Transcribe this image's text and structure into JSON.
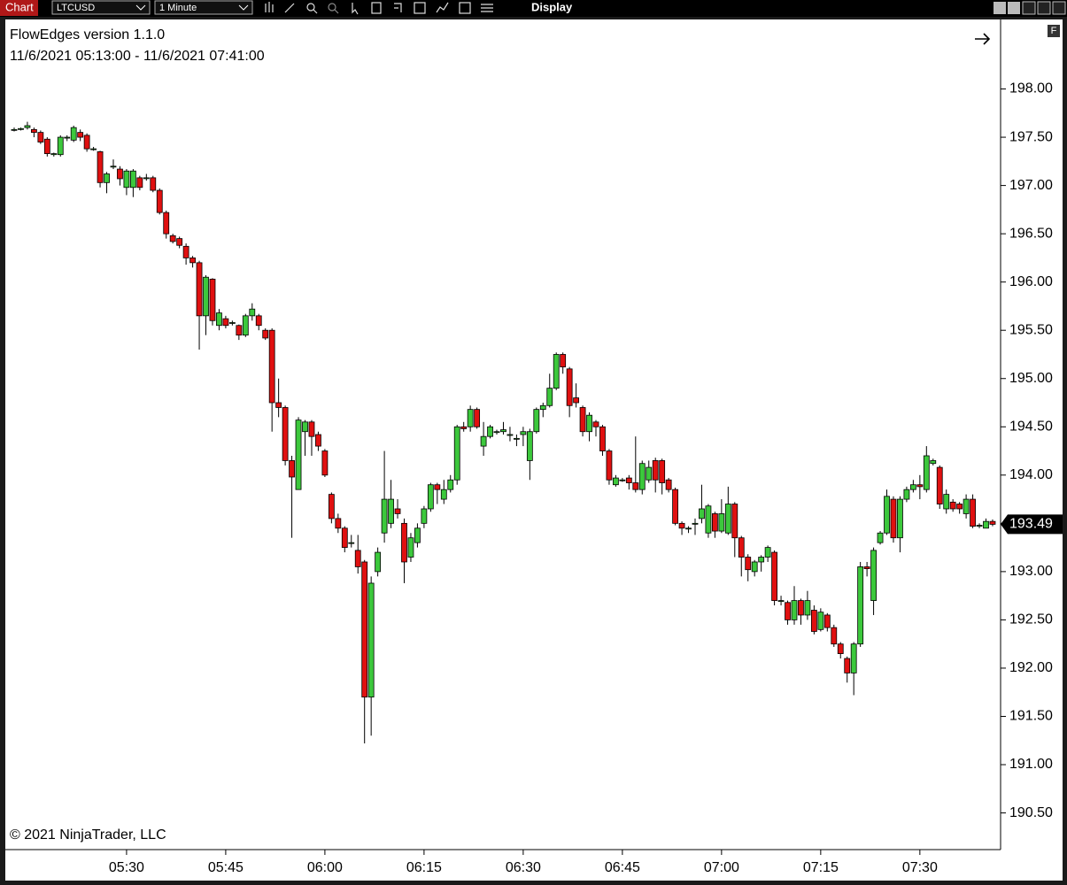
{
  "toolbar": {
    "tab": "Chart",
    "instrument": "LTCUSD",
    "interval": "1 Minute",
    "menu": "Display"
  },
  "chart_data": {
    "type": "candlestick",
    "title": "FlowEdges version 1.1.0",
    "subtitle": "11/6/2021 05:13:00 - 11/6/2021 07:41:00",
    "footer": "© 2021 NinjaTrader, LLC",
    "corner_badge": "F",
    "up_color": "#3cc83c",
    "down_color": "#e01010",
    "x": [
      "05:13",
      "05:14",
      "05:15",
      "05:16",
      "05:17",
      "05:18",
      "05:19",
      "05:20",
      "05:21",
      "05:22",
      "05:23",
      "05:24",
      "05:25",
      "05:26",
      "05:27",
      "05:28",
      "05:29",
      "05:30",
      "05:31",
      "05:32",
      "05:33",
      "05:34",
      "05:35",
      "05:36",
      "05:37",
      "05:38",
      "05:39",
      "05:40",
      "05:41",
      "05:42",
      "05:43",
      "05:44",
      "05:45",
      "05:46",
      "05:47",
      "05:48",
      "05:49",
      "05:50",
      "05:51",
      "05:52",
      "05:53",
      "05:54",
      "05:55",
      "05:56",
      "05:57",
      "05:58",
      "05:59",
      "06:00",
      "06:01",
      "06:02",
      "06:03",
      "06:04",
      "06:05",
      "06:06",
      "06:07",
      "06:08",
      "06:09",
      "06:10",
      "06:11",
      "06:12",
      "06:13",
      "06:14",
      "06:15",
      "06:16",
      "06:17",
      "06:18",
      "06:19",
      "06:20",
      "06:21",
      "06:22",
      "06:23",
      "06:24",
      "06:25",
      "06:26",
      "06:27",
      "06:28",
      "06:29",
      "06:30",
      "06:31",
      "06:32",
      "06:33",
      "06:34",
      "06:35",
      "06:36",
      "06:37",
      "06:38",
      "06:39",
      "06:40",
      "06:41",
      "06:42",
      "06:43",
      "06:44",
      "06:45",
      "06:46",
      "06:47",
      "06:48",
      "06:49",
      "06:50",
      "06:51",
      "06:52",
      "06:53",
      "06:54",
      "06:55",
      "06:56",
      "06:57",
      "06:58",
      "06:59",
      "07:00",
      "07:01",
      "07:02",
      "07:03",
      "07:04",
      "07:05",
      "07:06",
      "07:07",
      "07:08",
      "07:09",
      "07:10",
      "07:11",
      "07:12",
      "07:13",
      "07:14",
      "07:15",
      "07:16",
      "07:17",
      "07:18",
      "07:19",
      "07:20",
      "07:21",
      "07:22",
      "07:23",
      "07:24",
      "07:25",
      "07:26",
      "07:27",
      "07:28",
      "07:29",
      "07:30",
      "07:31",
      "07:32",
      "07:33",
      "07:34",
      "07:35",
      "07:36",
      "07:37",
      "07:38",
      "07:39",
      "07:40",
      "07:41"
    ],
    "open": [
      197.58,
      197.58,
      197.6,
      197.58,
      197.55,
      197.48,
      197.32,
      197.32,
      197.5,
      197.47,
      197.55,
      197.52,
      197.38,
      197.35,
      197.03,
      197.2,
      197.17,
      196.98,
      196.98,
      197.08,
      197.08,
      197.08,
      196.95,
      196.72,
      196.48,
      196.45,
      196.37,
      196.25,
      196.2,
      195.65,
      196.03,
      195.55,
      195.62,
      195.58,
      195.55,
      195.45,
      195.65,
      195.65,
      195.5,
      195.5,
      194.75,
      194.7,
      194.15,
      193.85,
      194.45,
      194.55,
      194.42,
      194.25,
      193.8,
      193.55,
      193.45,
      193.3,
      193.22,
      193.1,
      191.7,
      193.0,
      193.4,
      193.5,
      193.65,
      193.5,
      193.15,
      193.3,
      193.5,
      193.65,
      193.9,
      193.75,
      193.85,
      193.95,
      194.5,
      194.5,
      194.68,
      194.3,
      194.4,
      194.45,
      194.45,
      194.42,
      194.38,
      194.42,
      194.15,
      194.45,
      194.68,
      194.72,
      194.9,
      195.25,
      195.1,
      194.8,
      194.7,
      194.45,
      194.55,
      194.5,
      194.25,
      193.9,
      193.95,
      193.97,
      193.92,
      193.85,
      193.95,
      194.15,
      194.15,
      193.95,
      193.85,
      193.5,
      193.45,
      193.5,
      193.55,
      193.4,
      193.6,
      193.42,
      193.4,
      193.7,
      193.35,
      193.15,
      193.0,
      193.1,
      193.15,
      193.2,
      192.7,
      192.68,
      192.5,
      192.7,
      192.55,
      192.6,
      192.4,
      192.55,
      192.42,
      192.25,
      192.1,
      191.95,
      192.25,
      193.05,
      192.7,
      193.3,
      193.4,
      193.75,
      193.35,
      193.75,
      193.85,
      193.9,
      193.85,
      194.12,
      194.08,
      193.65,
      193.72,
      193.7,
      193.6,
      193.75,
      193.47,
      193.45,
      193.52
    ],
    "high": [
      197.6,
      197.6,
      197.66,
      197.6,
      197.57,
      197.5,
      197.34,
      197.52,
      197.52,
      197.62,
      197.58,
      197.54,
      197.4,
      197.36,
      197.14,
      197.27,
      197.2,
      197.17,
      197.17,
      197.1,
      197.12,
      197.1,
      196.97,
      196.74,
      196.5,
      196.47,
      196.4,
      196.27,
      196.22,
      196.07,
      196.04,
      195.72,
      195.65,
      195.6,
      195.56,
      195.67,
      195.78,
      195.67,
      195.52,
      195.52,
      195.0,
      194.72,
      194.2,
      194.6,
      194.57,
      194.57,
      194.45,
      194.27,
      193.82,
      193.6,
      193.47,
      193.38,
      193.38,
      193.12,
      192.95,
      193.25,
      194.25,
      193.95,
      193.75,
      193.55,
      193.4,
      193.5,
      193.68,
      193.92,
      193.92,
      193.95,
      194.0,
      194.52,
      194.55,
      194.72,
      194.7,
      194.55,
      194.52,
      194.47,
      194.55,
      194.5,
      194.42,
      194.5,
      194.48,
      194.7,
      194.75,
      195.05,
      195.27,
      195.27,
      195.12,
      194.95,
      194.72,
      194.65,
      194.57,
      194.52,
      194.27,
      194.0,
      193.97,
      194.0,
      194.4,
      194.15,
      194.15,
      194.18,
      194.17,
      193.97,
      193.87,
      193.52,
      193.47,
      193.55,
      193.9,
      193.7,
      193.62,
      193.75,
      193.88,
      193.72,
      193.37,
      193.18,
      193.12,
      193.17,
      193.27,
      193.22,
      192.75,
      192.7,
      192.85,
      192.72,
      192.8,
      192.65,
      192.62,
      192.57,
      192.45,
      192.27,
      192.12,
      192.27,
      193.1,
      193.1,
      193.25,
      193.42,
      193.85,
      193.78,
      193.78,
      193.88,
      193.95,
      194.0,
      194.3,
      194.17,
      194.1,
      193.85,
      193.75,
      193.72,
      193.8,
      193.8,
      193.5,
      193.55,
      193.54
    ],
    "low": [
      197.56,
      197.57,
      197.58,
      197.5,
      197.43,
      197.3,
      197.3,
      197.3,
      197.46,
      197.45,
      197.46,
      197.35,
      197.36,
      196.98,
      196.92,
      197.17,
      197.0,
      196.9,
      196.88,
      196.95,
      197.05,
      196.93,
      196.7,
      196.45,
      196.4,
      196.35,
      196.18,
      196.15,
      195.3,
      195.45,
      195.55,
      195.5,
      195.52,
      195.55,
      195.4,
      195.43,
      195.6,
      195.5,
      195.4,
      194.45,
      194.6,
      194.1,
      193.35,
      193.85,
      194.2,
      194.2,
      194.25,
      193.98,
      193.5,
      193.4,
      193.2,
      193.25,
      192.98,
      191.22,
      191.3,
      192.95,
      193.3,
      193.45,
      193.55,
      192.88,
      193.1,
      193.25,
      193.45,
      193.62,
      193.7,
      193.7,
      193.82,
      193.9,
      194.45,
      194.45,
      194.48,
      194.2,
      194.38,
      194.42,
      194.42,
      194.35,
      194.3,
      194.3,
      193.95,
      194.43,
      194.6,
      194.7,
      194.88,
      195.05,
      194.6,
      194.7,
      194.4,
      194.35,
      194.4,
      194.2,
      193.9,
      193.88,
      193.93,
      193.85,
      193.82,
      193.8,
      193.92,
      193.82,
      193.8,
      193.82,
      193.48,
      193.38,
      193.4,
      193.38,
      193.5,
      193.35,
      193.35,
      193.4,
      193.38,
      193.15,
      192.95,
      192.9,
      192.95,
      193.0,
      193.1,
      192.65,
      192.65,
      192.45,
      192.45,
      192.45,
      192.5,
      192.35,
      192.38,
      192.38,
      192.22,
      192.1,
      191.85,
      191.72,
      192.22,
      192.95,
      192.55,
      193.28,
      193.38,
      193.3,
      193.2,
      193.72,
      193.82,
      193.75,
      193.82,
      194.1,
      193.65,
      193.6,
      193.62,
      193.6,
      193.55,
      193.45,
      193.45,
      193.45,
      193.47
    ],
    "close": [
      197.58,
      197.59,
      197.62,
      197.55,
      197.45,
      197.33,
      197.33,
      197.5,
      197.5,
      197.6,
      197.5,
      197.38,
      197.38,
      197.03,
      197.12,
      197.2,
      197.07,
      197.15,
      197.15,
      196.98,
      197.08,
      196.95,
      196.72,
      196.5,
      196.42,
      196.38,
      196.25,
      196.2,
      195.65,
      196.05,
      195.6,
      195.68,
      195.55,
      195.58,
      195.45,
      195.65,
      195.72,
      195.55,
      195.42,
      194.75,
      194.7,
      194.15,
      193.98,
      194.57,
      194.55,
      194.4,
      194.3,
      194.0,
      193.55,
      193.45,
      193.25,
      193.3,
      193.05,
      191.7,
      192.88,
      193.2,
      193.75,
      193.75,
      193.6,
      193.1,
      193.35,
      193.45,
      193.65,
      193.9,
      193.85,
      193.85,
      193.95,
      194.5,
      194.48,
      194.68,
      194.5,
      194.4,
      194.5,
      194.45,
      194.47,
      194.42,
      194.38,
      194.45,
      194.45,
      194.68,
      194.72,
      194.9,
      195.25,
      195.12,
      194.72,
      194.75,
      194.45,
      194.62,
      194.5,
      194.25,
      193.95,
      193.97,
      193.95,
      193.92,
      193.85,
      194.12,
      194.08,
      193.95,
      193.92,
      193.85,
      193.5,
      193.45,
      193.45,
      193.5,
      193.65,
      193.68,
      193.42,
      193.6,
      193.7,
      193.35,
      193.15,
      193.02,
      193.1,
      193.15,
      193.25,
      192.7,
      192.7,
      192.5,
      192.7,
      192.55,
      192.7,
      192.38,
      192.58,
      192.42,
      192.25,
      192.15,
      191.95,
      192.25,
      193.05,
      193.03,
      193.22,
      193.4,
      193.78,
      193.35,
      193.75,
      193.85,
      193.9,
      193.88,
      194.2,
      194.15,
      193.7,
      193.8,
      193.65,
      193.65,
      193.75,
      193.47,
      193.48,
      193.52,
      193.49
    ],
    "ylim": [
      190.12,
      198.72
    ],
    "yticks": [
      {
        "value": 190.5,
        "label": "190.50"
      },
      {
        "value": 191,
        "label": "191.00"
      },
      {
        "value": 191.5,
        "label": "191.50"
      },
      {
        "value": 192,
        "label": "192.00"
      },
      {
        "value": 192.5,
        "label": "192.50"
      },
      {
        "value": 193,
        "label": "193.00"
      },
      {
        "value": 193.5,
        "label": "193.50"
      },
      {
        "value": 194,
        "label": "194.00"
      },
      {
        "value": 194.5,
        "label": "194.50"
      },
      {
        "value": 195,
        "label": "195.00"
      },
      {
        "value": 195.5,
        "label": "195.50"
      },
      {
        "value": 196,
        "label": "196.00"
      },
      {
        "value": 196.5,
        "label": "196.50"
      },
      {
        "value": 197,
        "label": "197.00"
      },
      {
        "value": 197.5,
        "label": "197.50"
      },
      {
        "value": 198,
        "label": "198.00"
      }
    ],
    "xticks": [
      "05:30",
      "05:45",
      "06:00",
      "06:15",
      "06:30",
      "06:45",
      "07:00",
      "07:15",
      "07:30"
    ],
    "grid": false
  }
}
